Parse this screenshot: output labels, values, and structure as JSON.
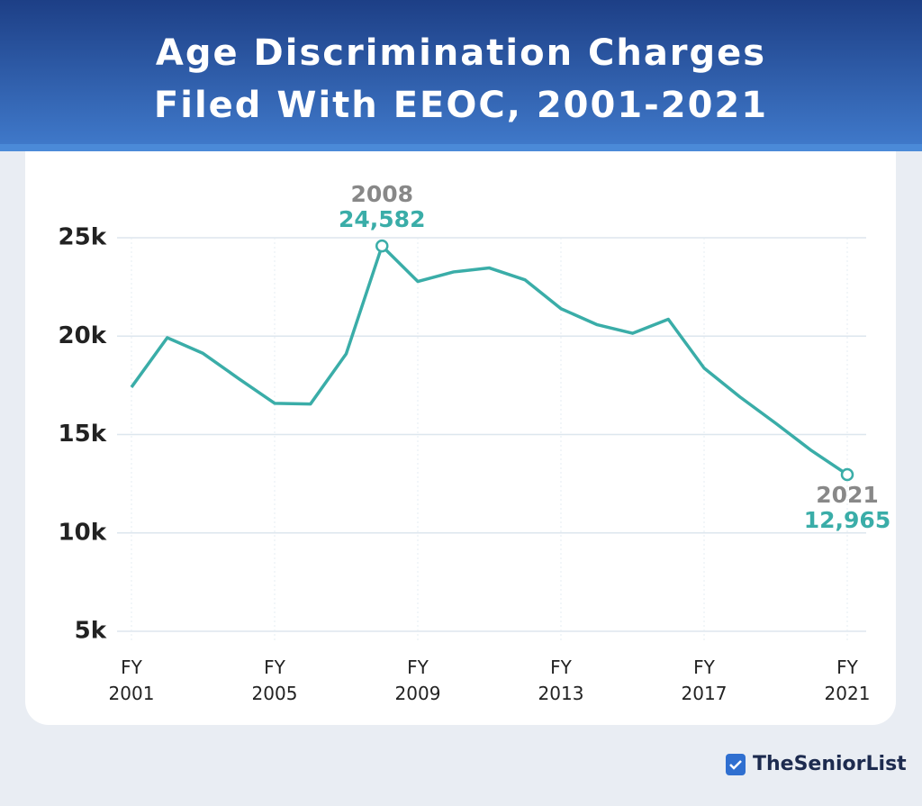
{
  "chart_data": {
    "type": "line",
    "title": "Age Discrimination Charges Filed With EEOC, 2001-2021",
    "x": [
      2001,
      2002,
      2003,
      2004,
      2005,
      2006,
      2007,
      2008,
      2009,
      2010,
      2011,
      2012,
      2013,
      2014,
      2015,
      2016,
      2017,
      2018,
      2019,
      2020,
      2021
    ],
    "series": [
      {
        "color": "#3aada8",
        "values": [
          17405,
          19921,
          19124,
          17837,
          16585,
          16548,
          19103,
          24582,
          22778,
          23264,
          23465,
          22857,
          21396,
          20588,
          20144,
          20857,
          18376,
          16911,
          15573,
          14183,
          12965
        ],
        "value_labels": [
          null,
          null,
          null,
          null,
          null,
          null,
          null,
          "24,582",
          null,
          null,
          null,
          null,
          null,
          null,
          null,
          null,
          null,
          null,
          null,
          null,
          "12,965"
        ]
      }
    ],
    "xlim": [
      2001,
      2021
    ],
    "xticks": [
      {
        "value": 2001,
        "label": "FY\n2001"
      },
      {
        "value": 2005,
        "label": "FY\n2005"
      },
      {
        "value": 2009,
        "label": "FY\n2009"
      },
      {
        "value": 2013,
        "label": "FY\n2013"
      },
      {
        "value": 2017,
        "label": "FY\n2017"
      },
      {
        "value": 2021,
        "label": "FY\n2021"
      }
    ],
    "ylim": [
      5000,
      25000
    ],
    "yticks": [
      {
        "value": 5000,
        "label": "5k"
      },
      {
        "value": 10000,
        "label": "10k"
      },
      {
        "value": 15000,
        "label": "15k"
      },
      {
        "value": 20000,
        "label": "20k"
      },
      {
        "value": 25000,
        "label": "25k"
      }
    ],
    "grid": true,
    "brand": "TheSeniorList"
  }
}
